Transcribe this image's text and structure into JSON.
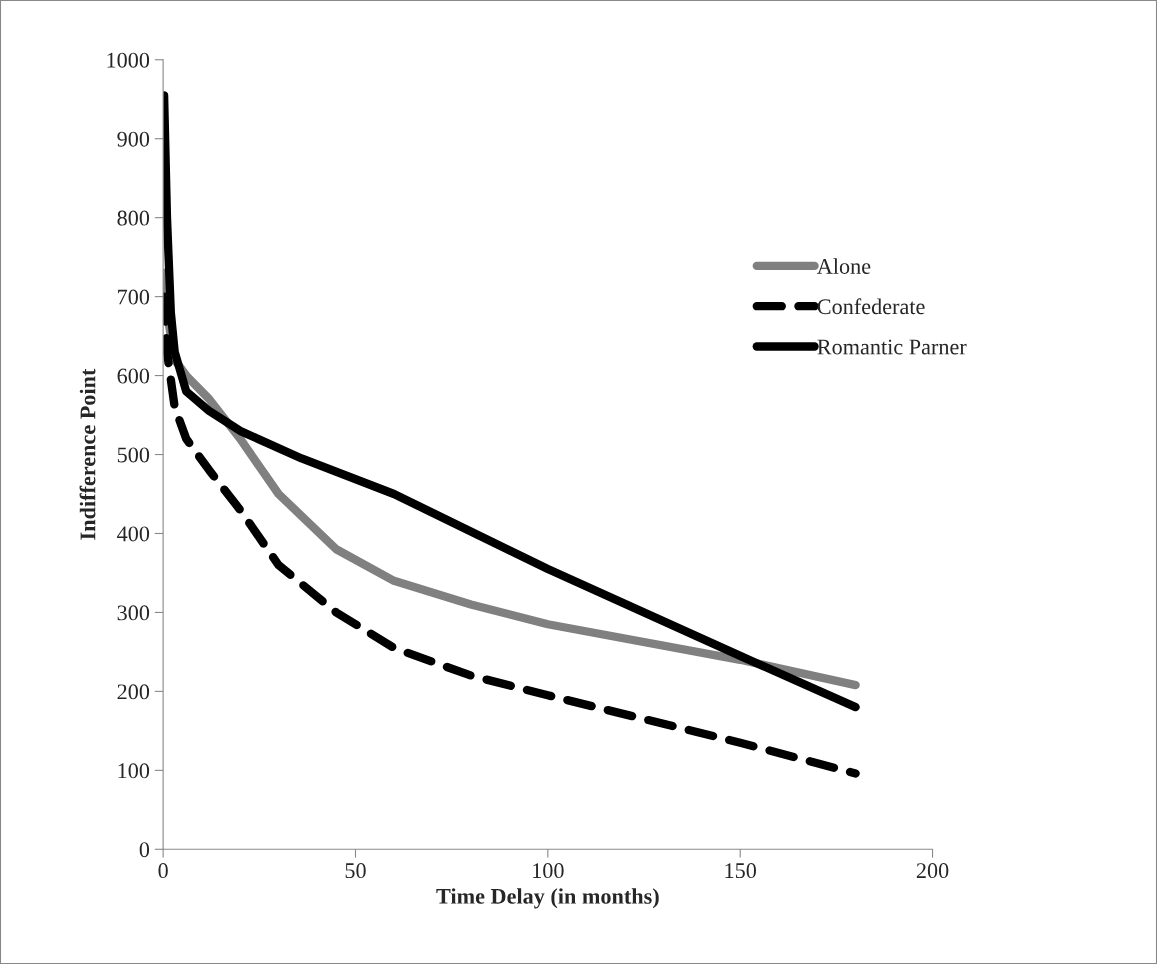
{
  "chart_data": {
    "type": "line",
    "xlabel": "Time Delay (in months)",
    "ylabel": "Indifference Point",
    "xlim": [
      0,
      200
    ],
    "xticks": [
      0,
      50,
      100,
      150,
      200
    ],
    "ylim": [
      0,
      1000
    ],
    "yticks": [
      0,
      100,
      200,
      300,
      400,
      500,
      600,
      700,
      800,
      900,
      1000
    ],
    "grid": false,
    "legend": "right",
    "marker": "none",
    "series": [
      {
        "name": "Alone",
        "color": "#808080",
        "line_style": "solid",
        "x": [
          0.25,
          1,
          3,
          6,
          12,
          20,
          30,
          45,
          60,
          80,
          100,
          150,
          180
        ],
        "values": [
          730,
          680,
          620,
          600,
          570,
          520,
          450,
          380,
          340,
          310,
          285,
          240,
          208
        ]
      },
      {
        "name": "Confederate",
        "color": "#000000",
        "line_style": "dashed",
        "x": [
          0.25,
          1,
          3,
          6,
          12,
          20,
          30,
          45,
          60,
          80,
          100,
          150,
          180
        ],
        "values": [
          700,
          630,
          560,
          520,
          480,
          430,
          360,
          300,
          255,
          220,
          195,
          135,
          96
        ]
      },
      {
        "name": "Romantic Parner",
        "color": "#000000",
        "line_style": "solid",
        "x": [
          0.25,
          1,
          2,
          3,
          6,
          12,
          20,
          36,
          60,
          100,
          150,
          180
        ],
        "values": [
          955,
          800,
          680,
          630,
          580,
          555,
          530,
          495,
          450,
          355,
          245,
          180
        ]
      }
    ]
  }
}
